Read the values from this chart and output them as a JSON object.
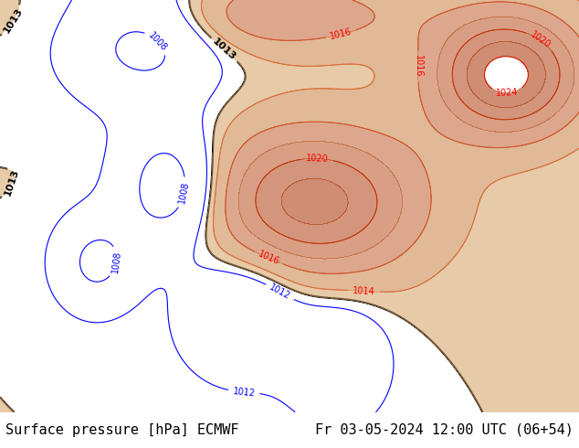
{
  "title_left": "Surface pressure [hPa] ECMWF",
  "title_right": "Fr 03-05-2024 12:00 UTC (06+54)",
  "title_fontsize": 11,
  "title_color": "#000000",
  "title_bg": "#ffffff",
  "fig_width": 6.34,
  "fig_height": 4.9,
  "dpi": 100,
  "map_extent": [
    25,
    145,
    5,
    60
  ],
  "land_color": "#c8d8b0",
  "water_color": "#aad3df",
  "contour_blue_color": "#0000ff",
  "contour_black_color": "#000000",
  "contour_red_color": "#ff0000",
  "contour_levels_blue": [
    996,
    1000,
    1004,
    1008,
    1012
  ],
  "contour_levels_black": [
    1013
  ],
  "contour_levels_red": [
    1014,
    1016,
    1020,
    1024,
    1028
  ],
  "fill_levels": [
    1013,
    1014,
    1016,
    1018,
    1020,
    1022,
    1024
  ],
  "fill_colors": [
    "#d4a060",
    "#c88040",
    "#c06030",
    "#b85020",
    "#b04010",
    "#a83000"
  ],
  "label_fontsize": 7,
  "bottom_bar_height": 0.08
}
